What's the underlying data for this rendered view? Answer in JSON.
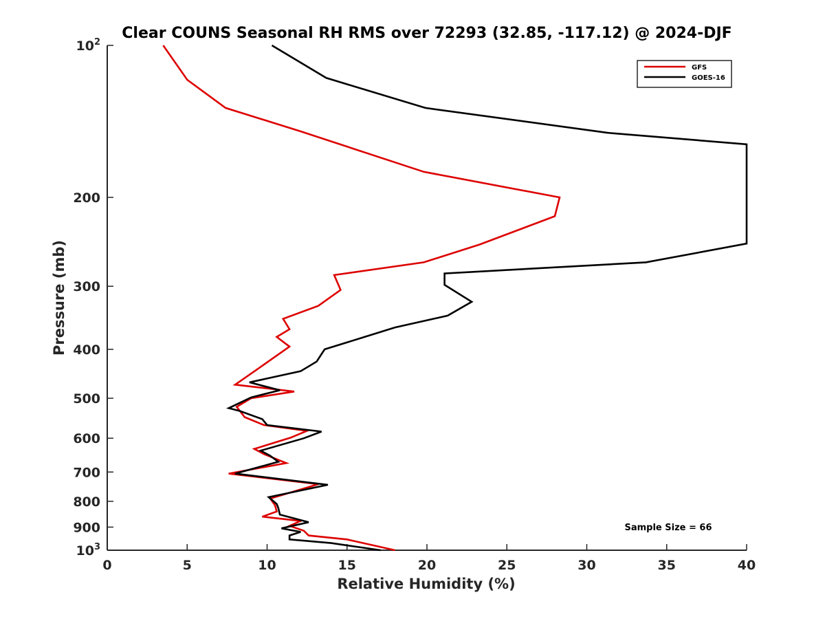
{
  "chart_data": {
    "type": "line",
    "title": "Clear COUNS Seasonal RH RMS over 72293 (32.85, -117.12) @ 2024-DJF",
    "xlabel": "Relative Humidity (%)",
    "ylabel": "Pressure (mb)",
    "xlim": [
      0,
      40
    ],
    "ylim": [
      100,
      1000
    ],
    "yscale": "log",
    "y_reversed": true,
    "x_ticks": [
      "0",
      "5",
      "10",
      "15",
      "20",
      "25",
      "30",
      "35",
      "40"
    ],
    "y_ticks": [
      {
        "value": 100,
        "base": "10",
        "exp": "2"
      },
      {
        "value": 200,
        "base": "200",
        "exp": ""
      },
      {
        "value": 300,
        "base": "300",
        "exp": ""
      },
      {
        "value": 400,
        "base": "400",
        "exp": ""
      },
      {
        "value": 500,
        "base": "500",
        "exp": ""
      },
      {
        "value": 600,
        "base": "600",
        "exp": ""
      },
      {
        "value": 700,
        "base": "700",
        "exp": ""
      },
      {
        "value": 800,
        "base": "800",
        "exp": ""
      },
      {
        "value": 900,
        "base": "900",
        "exp": ""
      },
      {
        "value": 1000,
        "base": "10",
        "exp": "3"
      }
    ],
    "legend_position": "top-right",
    "annotation": "Sample Size = 66",
    "series": [
      {
        "name": "GFS",
        "color": "#dd0000",
        "points": [
          [
            3.5,
            100
          ],
          [
            5.0,
            117
          ],
          [
            7.4,
            133
          ],
          [
            12.1,
            148
          ],
          [
            19.8,
            178
          ],
          [
            28.3,
            200
          ],
          [
            28.0,
            218
          ],
          [
            23.3,
            248
          ],
          [
            19.8,
            269
          ],
          [
            14.2,
            285
          ],
          [
            14.6,
            305
          ],
          [
            13.2,
            328
          ],
          [
            11.0,
            348
          ],
          [
            11.4,
            365
          ],
          [
            10.6,
            378
          ],
          [
            11.4,
            395
          ],
          [
            9.3,
            440
          ],
          [
            8.0,
            470
          ],
          [
            11.7,
            485
          ],
          [
            9.0,
            500
          ],
          [
            8.1,
            520
          ],
          [
            8.6,
            545
          ],
          [
            9.8,
            565
          ],
          [
            12.5,
            580
          ],
          [
            11.5,
            598
          ],
          [
            9.2,
            630
          ],
          [
            9.8,
            645
          ],
          [
            11.2,
            672
          ],
          [
            7.6,
            705
          ],
          [
            13.2,
            740
          ],
          [
            10.2,
            790
          ],
          [
            10.5,
            815
          ],
          [
            10.6,
            838
          ],
          [
            9.7,
            858
          ],
          [
            12.1,
            875
          ],
          [
            11.4,
            895
          ],
          [
            12.3,
            915
          ],
          [
            12.6,
            935
          ],
          [
            15.0,
            952
          ],
          [
            18.0,
            1000
          ]
        ]
      },
      {
        "name": "GOES-16",
        "color": "#000000",
        "points": [
          [
            10.3,
            100
          ],
          [
            13.7,
            116
          ],
          [
            19.9,
            133
          ],
          [
            31.3,
            149
          ],
          [
            40.0,
            157
          ],
          [
            40.0,
            247
          ],
          [
            33.7,
            269
          ],
          [
            21.1,
            283
          ],
          [
            21.1,
            298
          ],
          [
            22.8,
            322
          ],
          [
            21.3,
            343
          ],
          [
            18.0,
            362
          ],
          [
            16.1,
            378
          ],
          [
            13.6,
            400
          ],
          [
            13.1,
            423
          ],
          [
            12.1,
            442
          ],
          [
            8.9,
            465
          ],
          [
            10.8,
            482
          ],
          [
            9.0,
            498
          ],
          [
            7.6,
            523
          ],
          [
            8.3,
            530
          ],
          [
            9.7,
            550
          ],
          [
            10.0,
            565
          ],
          [
            13.4,
            582
          ],
          [
            12.3,
            600
          ],
          [
            9.6,
            635
          ],
          [
            10.2,
            650
          ],
          [
            10.7,
            668
          ],
          [
            8.0,
            705
          ],
          [
            13.8,
            742
          ],
          [
            10.1,
            785
          ],
          [
            10.6,
            810
          ],
          [
            10.7,
            825
          ],
          [
            10.8,
            850
          ],
          [
            12.6,
            880
          ],
          [
            10.9,
            905
          ],
          [
            12.1,
            920
          ],
          [
            11.4,
            935
          ],
          [
            11.4,
            952
          ],
          [
            14.0,
            968
          ],
          [
            17.1,
            1000
          ]
        ]
      }
    ]
  }
}
